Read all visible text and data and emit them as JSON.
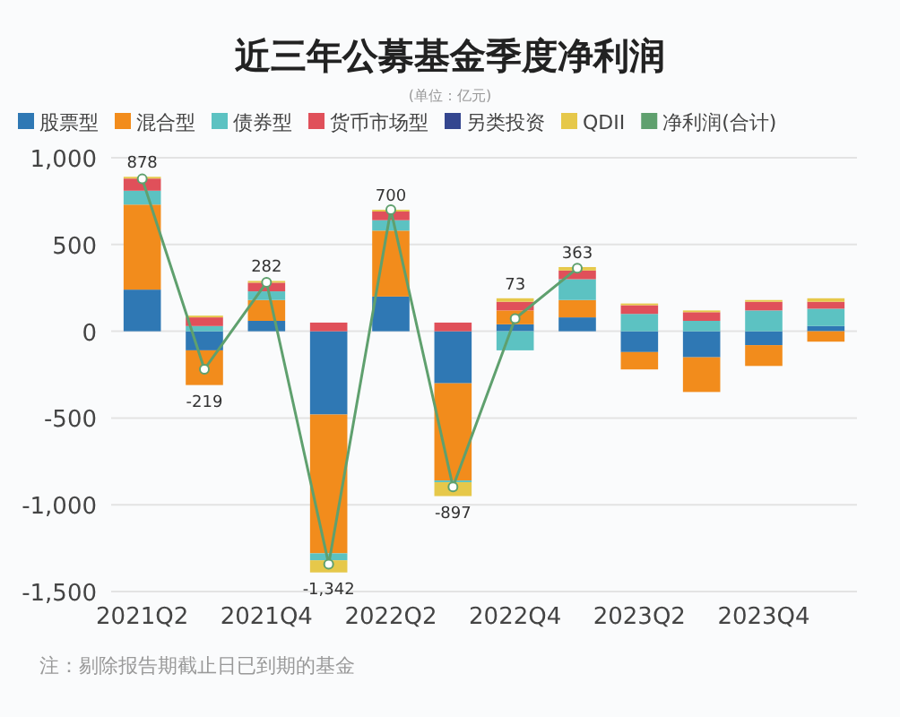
{
  "chart_data": {
    "type": "bar",
    "title": "近三年公募基金季度净利润",
    "subtitle": "(单位：亿元)",
    "categories": [
      "2021Q2",
      null,
      "2021Q4",
      null,
      "2022Q2",
      null,
      "2022Q4",
      null,
      "2023Q2",
      null,
      "2023Q4",
      null
    ],
    "stacked": true,
    "series": [
      {
        "name": "股票型",
        "color": "#2f78b4",
        "values": [
          240,
          -110,
          60,
          -480,
          200,
          -300,
          40,
          80,
          -120,
          -150,
          -80,
          30
        ]
      },
      {
        "name": "混合型",
        "color": "#f28c1c",
        "values": [
          490,
          -200,
          120,
          -800,
          380,
          -560,
          80,
          100,
          -100,
          -200,
          -120,
          -60
        ]
      },
      {
        "name": "债券型",
        "color": "#5cc2c2",
        "values": [
          80,
          30,
          50,
          -40,
          60,
          -10,
          -110,
          120,
          100,
          60,
          120,
          100
        ]
      },
      {
        "name": "货币市场型",
        "color": "#e0505a",
        "values": [
          70,
          50,
          50,
          50,
          50,
          50,
          50,
          50,
          50,
          50,
          50,
          40
        ]
      },
      {
        "name": "另类投资",
        "color": "#34468f",
        "values": [
          null,
          null,
          null,
          null,
          null,
          null,
          null,
          null,
          null,
          null,
          null,
          null
        ]
      },
      {
        "name": "QDII",
        "color": "#e6c84a",
        "values": [
          10,
          10,
          10,
          -70,
          10,
          -80,
          20,
          20,
          10,
          10,
          10,
          20
        ]
      },
      {
        "name": "净利润(合计)",
        "type": "line",
        "color": "#5fa06e",
        "marker": "circle",
        "values": [
          878,
          -219,
          282,
          -1342,
          700,
          -897,
          73,
          363,
          null,
          null,
          null,
          null
        ],
        "value_labels": [
          "878",
          "-219",
          "282",
          "-1,342",
          "700",
          "-897",
          "73",
          "363",
          null,
          null,
          null,
          null
        ]
      }
    ],
    "ylim": [
      -1500,
      1000
    ],
    "yticks": [
      {
        "value": -1500,
        "label": "-1,500"
      },
      {
        "value": -1000,
        "label": "-1,000"
      },
      -500,
      0,
      500,
      {
        "value": 1000,
        "label": "1,000"
      }
    ],
    "grid": "y",
    "legend": "top",
    "annotations": [
      "注：剔除报告期截止日已到期的基金"
    ]
  }
}
